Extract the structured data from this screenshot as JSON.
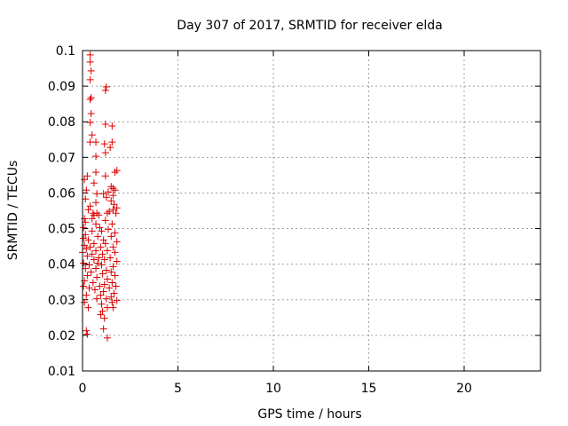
{
  "chart_data": {
    "type": "scatter",
    "title": "Day 307 of 2017, SRMTID for receiver elda",
    "xlabel": "GPS time / hours",
    "ylabel": "SRMTID / TECUs",
    "xlim": [
      0,
      24
    ],
    "ylim": [
      0.01,
      0.1
    ],
    "xticks": [
      0,
      5,
      10,
      15,
      20
    ],
    "xtick_labels": [
      "0",
      "5",
      "10",
      "15",
      "20"
    ],
    "yticks": [
      0.01,
      0.02,
      0.03,
      0.04,
      0.05,
      0.06,
      0.07,
      0.08,
      0.09,
      0.1
    ],
    "ytick_labels": [
      "0.01",
      "0.02",
      "0.03",
      "0.04",
      "0.05",
      "0.06",
      "0.07",
      "0.08",
      "0.09",
      "0.1"
    ],
    "grid": true,
    "marker": "+",
    "color": "#dd0000",
    "points": [
      [
        0.4,
        0.0988
      ],
      [
        0.4,
        0.0968
      ],
      [
        0.45,
        0.0943
      ],
      [
        0.4,
        0.0918
      ],
      [
        1.25,
        0.0898
      ],
      [
        1.2,
        0.0888
      ],
      [
        0.45,
        0.0868
      ],
      [
        0.4,
        0.0863
      ],
      [
        0.45,
        0.0823
      ],
      [
        0.4,
        0.0798
      ],
      [
        1.2,
        0.0793
      ],
      [
        1.55,
        0.0788
      ],
      [
        0.5,
        0.0763
      ],
      [
        0.4,
        0.0743
      ],
      [
        1.55,
        0.0743
      ],
      [
        0.7,
        0.0743
      ],
      [
        1.15,
        0.0738
      ],
      [
        1.45,
        0.0728
      ],
      [
        1.2,
        0.0713
      ],
      [
        0.7,
        0.0703
      ],
      [
        1.8,
        0.0663
      ],
      [
        1.7,
        0.0658
      ],
      [
        0.7,
        0.0658
      ],
      [
        0.25,
        0.0648
      ],
      [
        1.2,
        0.0648
      ],
      [
        0.1,
        0.0638
      ],
      [
        0.6,
        0.0628
      ],
      [
        1.5,
        0.0618
      ],
      [
        1.6,
        0.0613
      ],
      [
        0.2,
        0.0608
      ],
      [
        1.7,
        0.0608
      ],
      [
        1.35,
        0.0603
      ],
      [
        0.75,
        0.0598
      ],
      [
        1.1,
        0.0598
      ],
      [
        1.6,
        0.0593
      ],
      [
        1.25,
        0.0588
      ],
      [
        0.15,
        0.0583
      ],
      [
        1.5,
        0.0578
      ],
      [
        0.7,
        0.0573
      ],
      [
        1.65,
        0.0568
      ],
      [
        0.4,
        0.0563
      ],
      [
        1.8,
        0.0558
      ],
      [
        0.3,
        0.0553
      ],
      [
        1.6,
        0.0553
      ],
      [
        1.4,
        0.0548
      ],
      [
        0.55,
        0.0543
      ],
      [
        0.75,
        0.0543
      ],
      [
        1.3,
        0.0543
      ],
      [
        1.75,
        0.0543
      ],
      [
        0.6,
        0.0538
      ],
      [
        0.85,
        0.0538
      ],
      [
        0.1,
        0.0528
      ],
      [
        0.5,
        0.0528
      ],
      [
        1.2,
        0.0523
      ],
      [
        0.15,
        0.0518
      ],
      [
        0.7,
        0.0513
      ],
      [
        1.55,
        0.0513
      ],
      [
        0.05,
        0.0503
      ],
      [
        0.9,
        0.0503
      ],
      [
        1.35,
        0.0498
      ],
      [
        0.5,
        0.0493
      ],
      [
        1.0,
        0.0493
      ],
      [
        1.7,
        0.0488
      ],
      [
        0.15,
        0.0483
      ],
      [
        0.8,
        0.0478
      ],
      [
        1.5,
        0.0478
      ],
      [
        0.05,
        0.0473
      ],
      [
        0.3,
        0.0468
      ],
      [
        1.1,
        0.0468
      ],
      [
        1.8,
        0.0463
      ],
      [
        0.6,
        0.0458
      ],
      [
        1.2,
        0.0458
      ],
      [
        0.1,
        0.0453
      ],
      [
        0.4,
        0.0448
      ],
      [
        0.95,
        0.0448
      ],
      [
        1.6,
        0.0448
      ],
      [
        0.2,
        0.0443
      ],
      [
        0.7,
        0.0438
      ],
      [
        1.3,
        0.0438
      ],
      [
        0.0,
        0.0433
      ],
      [
        1.7,
        0.0433
      ],
      [
        0.5,
        0.0428
      ],
      [
        1.05,
        0.0428
      ],
      [
        0.25,
        0.0423
      ],
      [
        0.85,
        0.0418
      ],
      [
        1.45,
        0.0418
      ],
      [
        0.6,
        0.0413
      ],
      [
        1.15,
        0.0413
      ],
      [
        1.8,
        0.0408
      ],
      [
        0.05,
        0.0403
      ],
      [
        0.8,
        0.0403
      ],
      [
        0.35,
        0.0398
      ],
      [
        1.0,
        0.0398
      ],
      [
        1.6,
        0.0393
      ],
      [
        0.15,
        0.0388
      ],
      [
        0.7,
        0.0388
      ],
      [
        1.25,
        0.0383
      ],
      [
        0.45,
        0.0378
      ],
      [
        1.5,
        0.0378
      ],
      [
        1.05,
        0.0373
      ],
      [
        0.25,
        0.0368
      ],
      [
        1.7,
        0.0368
      ],
      [
        0.75,
        0.0363
      ],
      [
        1.3,
        0.0358
      ],
      [
        0.1,
        0.0353
      ],
      [
        0.55,
        0.0348
      ],
      [
        1.55,
        0.0348
      ],
      [
        1.15,
        0.0343
      ],
      [
        0.05,
        0.0338
      ],
      [
        0.9,
        0.0338
      ],
      [
        1.75,
        0.0338
      ],
      [
        0.35,
        0.0333
      ],
      [
        1.4,
        0.0333
      ],
      [
        0.65,
        0.0328
      ],
      [
        1.1,
        0.0323
      ],
      [
        1.65,
        0.0318
      ],
      [
        0.2,
        0.0313
      ],
      [
        0.95,
        0.0313
      ],
      [
        1.5,
        0.0308
      ],
      [
        0.75,
        0.0303
      ],
      [
        1.25,
        0.0303
      ],
      [
        1.8,
        0.0298
      ],
      [
        0.1,
        0.0293
      ],
      [
        1.55,
        0.0293
      ],
      [
        1.0,
        0.0288
      ],
      [
        0.3,
        0.0278
      ],
      [
        1.3,
        0.0278
      ],
      [
        1.6,
        0.0278
      ],
      [
        1.05,
        0.0268
      ],
      [
        0.95,
        0.0258
      ],
      [
        1.15,
        0.0248
      ],
      [
        1.1,
        0.0218
      ],
      [
        0.2,
        0.0213
      ],
      [
        0.25,
        0.0203
      ],
      [
        1.3,
        0.0193
      ]
    ]
  }
}
